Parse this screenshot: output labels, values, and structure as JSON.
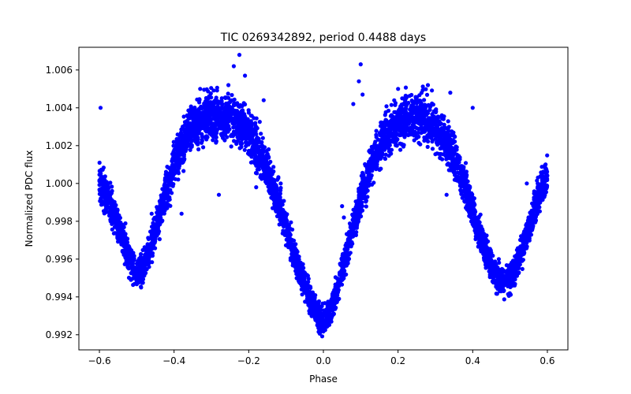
{
  "chart_data": {
    "type": "scatter",
    "title": "TIC 0269342892, period 0.4488 days",
    "xlabel": "Phase",
    "ylabel": "Normalized PDC flux",
    "xlim": [
      -0.655,
      0.655
    ],
    "ylim": [
      0.9912,
      1.0072
    ],
    "x_ticks": [
      -0.6,
      -0.4,
      -0.2,
      0.0,
      0.2,
      0.4,
      0.6
    ],
    "x_tick_labels": [
      "−0.6",
      "−0.4",
      "−0.2",
      "0.0",
      "0.2",
      "0.4",
      "0.6"
    ],
    "y_ticks": [
      0.992,
      0.994,
      0.996,
      0.998,
      1.0,
      1.002,
      1.004,
      1.006
    ],
    "y_tick_labels": [
      "0.992",
      "0.994",
      "0.996",
      "0.998",
      "1.000",
      "1.002",
      "1.004",
      "1.006"
    ],
    "grid": false,
    "legend": "none",
    "marker_color": "#0000ff",
    "series": [
      {
        "x": [
          -0.6,
          -0.58,
          -0.56,
          -0.54,
          -0.52,
          -0.5,
          -0.48,
          -0.46,
          -0.44,
          -0.42,
          -0.4,
          -0.38,
          -0.36,
          -0.34,
          -0.32,
          -0.3,
          -0.28,
          -0.26,
          -0.24,
          -0.22,
          -0.2,
          -0.18,
          -0.16,
          -0.14,
          -0.12,
          -0.1,
          -0.08,
          -0.06,
          -0.04,
          -0.02,
          0.0,
          0.02,
          0.04,
          0.06,
          0.08,
          0.1,
          0.12,
          0.14,
          0.16,
          0.18,
          0.2,
          0.22,
          0.24,
          0.26,
          0.28,
          0.3,
          0.32,
          0.34,
          0.36,
          0.38,
          0.4,
          0.42,
          0.44,
          0.46,
          0.48,
          0.5,
          0.52,
          0.54,
          0.56,
          0.58,
          0.6
        ],
        "y": [
          1.0002,
          0.9993,
          0.9983,
          0.9972,
          0.996,
          0.9952,
          0.9957,
          0.9968,
          0.9982,
          0.9996,
          1.0009,
          1.0019,
          1.0027,
          1.0032,
          1.0035,
          1.0036,
          1.0036,
          1.0035,
          1.0034,
          1.0031,
          1.0026,
          1.002,
          1.0012,
          1.0002,
          0.999,
          0.9977,
          0.9964,
          0.9952,
          0.9941,
          0.9932,
          0.9926,
          0.9933,
          0.9946,
          0.9962,
          0.9978,
          0.9992,
          1.0005,
          1.0015,
          1.0023,
          1.0028,
          1.0032,
          1.0034,
          1.0035,
          1.0035,
          1.0033,
          1.003,
          1.0025,
          1.0018,
          1.0009,
          0.9998,
          0.9986,
          0.9973,
          0.9961,
          0.9952,
          0.9948,
          0.995,
          0.9958,
          0.997,
          0.9983,
          0.9995,
          1.0004
        ]
      }
    ],
    "outliers": [
      {
        "x": -0.597,
        "y": 1.004
      },
      {
        "x": -0.24,
        "y": 1.0062
      },
      {
        "x": -0.21,
        "y": 1.0057
      },
      {
        "x": -0.225,
        "y": 1.0068
      },
      {
        "x": -0.33,
        "y": 1.005
      },
      {
        "x": -0.16,
        "y": 1.0044
      },
      {
        "x": -0.46,
        "y": 0.9984
      },
      {
        "x": -0.38,
        "y": 0.9984
      },
      {
        "x": -0.28,
        "y": 0.9994
      },
      {
        "x": -0.18,
        "y": 0.9998
      },
      {
        "x": 0.08,
        "y": 1.0042
      },
      {
        "x": 0.095,
        "y": 1.0054
      },
      {
        "x": 0.1,
        "y": 1.0063
      },
      {
        "x": 0.105,
        "y": 1.0047
      },
      {
        "x": 0.2,
        "y": 1.005
      },
      {
        "x": 0.28,
        "y": 1.0052
      },
      {
        "x": 0.34,
        "y": 1.0048
      },
      {
        "x": 0.4,
        "y": 1.004
      },
      {
        "x": 0.33,
        "y": 0.9994
      },
      {
        "x": 0.545,
        "y": 1.0
      },
      {
        "x": 0.47,
        "y": 0.996
      },
      {
        "x": 0.05,
        "y": 0.9988
      },
      {
        "x": 0.055,
        "y": 0.9982
      },
      {
        "x": -0.57,
        "y": 0.998
      }
    ]
  }
}
